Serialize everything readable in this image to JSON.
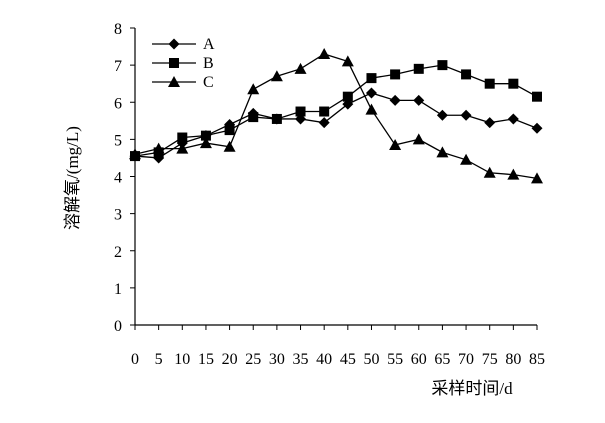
{
  "chart_data": {
    "type": "line",
    "title": "",
    "xlabel": "采样时间/d",
    "ylabel": "溶解氧/(mg/L)",
    "x": [
      0,
      5,
      10,
      15,
      20,
      25,
      30,
      35,
      40,
      45,
      50,
      55,
      60,
      65,
      70,
      75,
      80,
      85
    ],
    "x_tick_labels": [
      "0",
      "5",
      "10",
      "15",
      "20",
      "25",
      "30",
      "35",
      "40",
      "45",
      "50",
      "55",
      "60",
      "65",
      "70",
      "75",
      "80",
      "85"
    ],
    "ylim": [
      0,
      8
    ],
    "y_ticks": [
      0,
      1,
      2,
      3,
      4,
      5,
      6,
      7,
      8
    ],
    "y_tick_labels": [
      "0",
      "1",
      "2",
      "3",
      "4",
      "5",
      "6",
      "7",
      "8"
    ],
    "grid": false,
    "legend_position": "top-left",
    "series": [
      {
        "name": "A",
        "marker": "diamond",
        "values": [
          4.55,
          4.5,
          4.9,
          5.1,
          5.4,
          5.7,
          5.55,
          5.55,
          5.45,
          5.95,
          6.25,
          6.05,
          6.05,
          5.65,
          5.65,
          5.45,
          5.55,
          5.3
        ]
      },
      {
        "name": "B",
        "marker": "square",
        "values": [
          4.55,
          4.65,
          5.05,
          5.1,
          5.25,
          5.6,
          5.55,
          5.75,
          5.75,
          6.15,
          6.65,
          6.75,
          6.9,
          7.0,
          6.75,
          6.5,
          6.5,
          6.15
        ]
      },
      {
        "name": "C",
        "marker": "triangle",
        "values": [
          4.6,
          4.75,
          4.75,
          4.9,
          4.8,
          6.35,
          6.7,
          6.9,
          7.3,
          7.1,
          5.8,
          4.85,
          5.0,
          4.65,
          4.45,
          4.1,
          4.05,
          3.95
        ]
      }
    ]
  }
}
